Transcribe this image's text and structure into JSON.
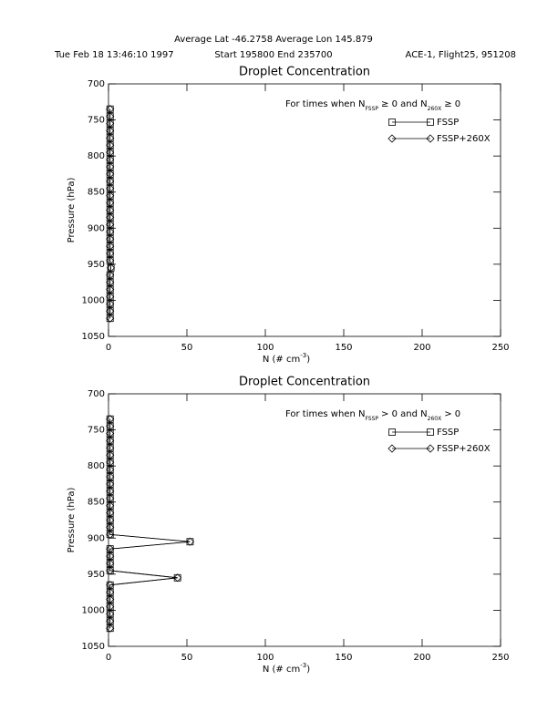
{
  "header": {
    "location": "Average Lat -46.2758  Average Lon 145.879",
    "date": "Tue Feb 18 13:46:10 1997",
    "times": "Start 195800  End 235700",
    "flight": "ACE-1, Flight25, 951208"
  },
  "chart_data": [
    {
      "type": "line",
      "title": "Droplet Concentration",
      "note": {
        "prefix": "For times when N",
        "sub1": "FSSP",
        "mid": "≥ 0 and N",
        "sub2": "260X",
        "suffix": "≥ 0"
      },
      "xlabel": {
        "text": "N (# cm",
        "sup": "-3",
        "end": ")"
      },
      "ylabel": "Pressure (hPa)",
      "y": [
        735,
        745,
        755,
        765,
        775,
        785,
        795,
        805,
        815,
        825,
        835,
        845,
        855,
        865,
        875,
        885,
        895,
        905,
        915,
        925,
        935,
        945,
        955,
        965,
        975,
        985,
        995,
        1005,
        1015,
        1025
      ],
      "series": [
        {
          "name": "FSSP",
          "marker": "square",
          "color": "#000000",
          "values": [
            1,
            1,
            1,
            1,
            1,
            1,
            1,
            1,
            1,
            1,
            1,
            1,
            1,
            1,
            1,
            1,
            1,
            1,
            1,
            1,
            1,
            1,
            1.5,
            1,
            1,
            1,
            1,
            1,
            1,
            1
          ]
        },
        {
          "name": "FSSP+260X",
          "marker": "diamond",
          "color": "#000000",
          "values": [
            1,
            1,
            1,
            1,
            1,
            1,
            1,
            1,
            1,
            1,
            1,
            1,
            1,
            1,
            1,
            1,
            1,
            1,
            1,
            1,
            1,
            1,
            1.5,
            1,
            1,
            1,
            1,
            1,
            1,
            1
          ]
        }
      ],
      "xlim": [
        0,
        250
      ],
      "xticks": [
        0,
        50,
        100,
        150,
        200,
        250
      ],
      "ylim": [
        1050,
        700
      ],
      "yticks": [
        700,
        750,
        800,
        850,
        900,
        950,
        1000,
        1050
      ],
      "legend": "upper right"
    },
    {
      "type": "line",
      "title": "Droplet Concentration",
      "note": {
        "prefix": "For times when N",
        "sub1": "FSSP",
        "mid": "> 0 and N",
        "sub2": "260X",
        "suffix": "> 0"
      },
      "xlabel": {
        "text": "N (# cm",
        "sup": "-3",
        "end": ")"
      },
      "ylabel": "Pressure (hPa)",
      "y": [
        735,
        745,
        755,
        765,
        775,
        785,
        795,
        805,
        815,
        825,
        835,
        845,
        855,
        865,
        875,
        885,
        895,
        905,
        915,
        925,
        935,
        945,
        955,
        965,
        975,
        985,
        995,
        1005,
        1015,
        1025
      ],
      "series": [
        {
          "name": "FSSP",
          "marker": "square",
          "color": "#000000",
          "values": [
            1,
            1,
            1,
            1,
            1,
            1,
            1,
            1,
            1,
            1,
            1,
            1,
            1,
            1,
            1,
            1,
            1,
            52,
            1,
            1,
            1,
            1,
            44,
            1,
            1,
            1,
            1,
            1,
            1,
            1
          ]
        },
        {
          "name": "FSSP+260X",
          "marker": "diamond",
          "color": "#000000",
          "values": [
            1,
            1,
            1,
            1,
            1,
            1,
            1,
            1,
            1,
            1,
            1,
            1,
            1,
            1,
            1,
            1,
            1,
            52,
            1,
            1,
            1,
            1,
            44,
            1,
            1,
            1,
            1,
            1,
            1,
            1
          ]
        }
      ],
      "xlim": [
        0,
        250
      ],
      "xticks": [
        0,
        50,
        100,
        150,
        200,
        250
      ],
      "ylim": [
        1050,
        700
      ],
      "yticks": [
        700,
        750,
        800,
        850,
        900,
        950,
        1000,
        1050
      ],
      "legend": "upper right"
    }
  ]
}
